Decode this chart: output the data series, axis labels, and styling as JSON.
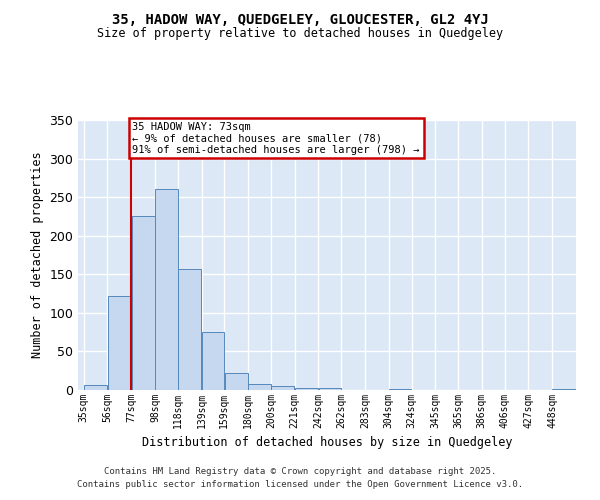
{
  "title": "35, HADOW WAY, QUEDGELEY, GLOUCESTER, GL2 4YJ",
  "subtitle": "Size of property relative to detached houses in Quedgeley",
  "xlabel": "Distribution of detached houses by size in Quedgeley",
  "ylabel": "Number of detached properties",
  "bar_color": "#c5d8f0",
  "bar_edge_color": "#5588bb",
  "bg_color": "#dce8f5",
  "grid_color": "#ffffff",
  "annotation_text": "35 HADOW WAY: 73sqm\n← 9% of detached houses are smaller (78)\n91% of semi-detached houses are larger (798) →",
  "vline_x": 77,
  "vline_color": "#cc0000",
  "bin_edges": [
    35,
    56,
    77,
    98,
    118,
    139,
    159,
    180,
    200,
    221,
    242,
    262,
    283,
    304,
    324,
    345,
    365,
    386,
    406,
    427,
    448
  ],
  "bar_heights": [
    6,
    122,
    225,
    260,
    157,
    75,
    22,
    8,
    5,
    3,
    2,
    0,
    0,
    1,
    0,
    0,
    0,
    0,
    0,
    0,
    1
  ],
  "ylim": [
    0,
    350
  ],
  "yticks": [
    0,
    50,
    100,
    150,
    200,
    250,
    300,
    350
  ],
  "xlim_left": 30,
  "xlim_right": 469,
  "footer1": "Contains HM Land Registry data © Crown copyright and database right 2025.",
  "footer2": "Contains public sector information licensed under the Open Government Licence v3.0."
}
